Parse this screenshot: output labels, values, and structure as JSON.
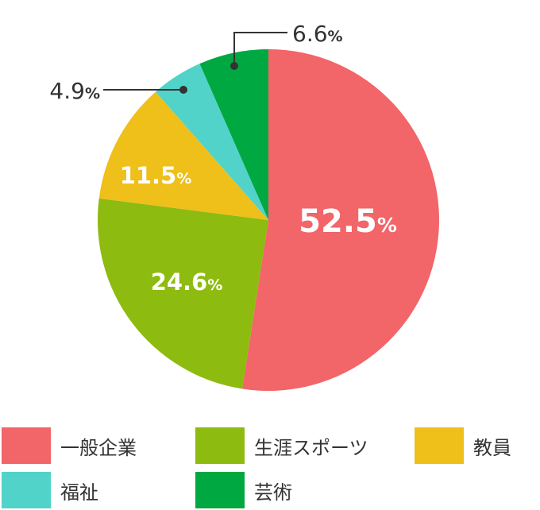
{
  "chart_data": {
    "type": "pie",
    "slices": [
      {
        "label": "一般企業",
        "value": 52.5,
        "value_text": "52.5",
        "color": "#f26568",
        "label_placement": "inside"
      },
      {
        "label": "生涯スポーツ",
        "value": 24.6,
        "value_text": "24.6",
        "color": "#8dbb10",
        "label_placement": "inside"
      },
      {
        "label": "教員",
        "value": 11.5,
        "value_text": "11.5",
        "color": "#efbf1a",
        "label_placement": "inside"
      },
      {
        "label": "福祉",
        "value": 4.9,
        "value_text": "4.9",
        "color": "#52d3c9",
        "label_placement": "callout-left"
      },
      {
        "label": "芸術",
        "value": 6.6,
        "value_text": "6.6",
        "color": "#00a842",
        "label_placement": "callout-top"
      }
    ],
    "unit": "%",
    "legend_position": "bottom"
  }
}
